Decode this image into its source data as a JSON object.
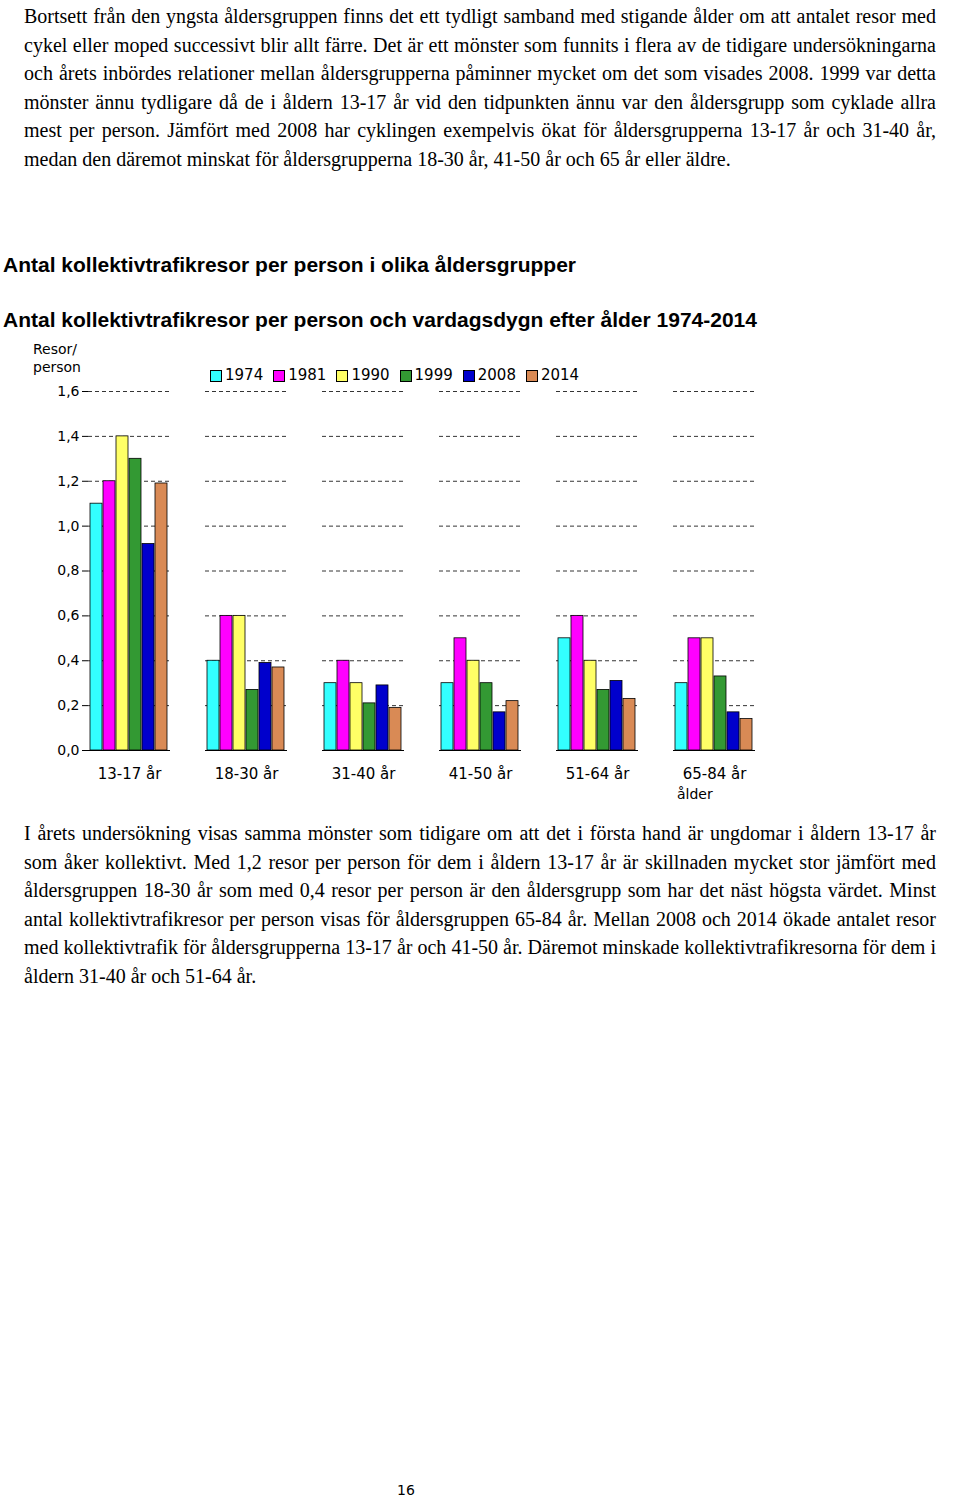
{
  "paragraph_top": "Bortsett från den yngsta åldersgruppen finns det ett tydligt samband med stigande ålder om att antalet resor med cykel eller moped successivt blir allt färre. Det är ett mönster som funnits i flera av de tidigare undersökningarna och årets inbördes relationer mellan åldersgrupperna påminner mycket om det som visades 2008. 1999 var detta mönster ännu tydligare då de i åldern 13-17 år vid den tidpunkten ännu var den åldersgrupp som cyklade allra mest per person. Jämfört med 2008 har cyklingen exempelvis ökat för åldersgrupperna 13-17 år och 31-40 år, medan den däremot minskat för åldersgrupperna 18-30 år, 41-50 år och 65 år eller äldre.",
  "heading": "Antal kollektivtrafikresor per person i olika åldersgrupper",
  "chart_data": {
    "type": "bar",
    "title": "Antal kollektivtrafikresor per person och vardagsdygn efter ålder 1974-2014",
    "ylabel": "Resor/ person",
    "xlabel": "ålder",
    "categories": [
      "13-17 år",
      "18-30 år",
      "31-40 år",
      "41-50 år",
      "51-64 år",
      "65-84 år"
    ],
    "series": [
      {
        "name": "1974",
        "color": "#33ffff",
        "values": [
          1.1,
          0.4,
          0.3,
          0.3,
          0.5,
          0.3
        ]
      },
      {
        "name": "1981",
        "color": "#ff00ff",
        "values": [
          1.2,
          0.6,
          0.4,
          0.5,
          0.6,
          0.5
        ]
      },
      {
        "name": "1990",
        "color": "#ffff66",
        "values": [
          1.4,
          0.6,
          0.3,
          0.4,
          0.4,
          0.5
        ]
      },
      {
        "name": "1999",
        "color": "#339933",
        "values": [
          1.3,
          0.27,
          0.21,
          0.3,
          0.27,
          0.33
        ]
      },
      {
        "name": "2008",
        "color": "#0000cc",
        "values": [
          0.92,
          0.39,
          0.29,
          0.17,
          0.31,
          0.17
        ]
      },
      {
        "name": "2014",
        "color": "#d98a55",
        "values": [
          1.19,
          0.37,
          0.19,
          0.22,
          0.23,
          0.14
        ]
      }
    ],
    "ylim": [
      0,
      1.6
    ],
    "yticks": [
      {
        "value": 0,
        "label": "0,0"
      },
      {
        "value": 0.2,
        "label": "0,2"
      },
      {
        "value": 0.4,
        "label": "0,4"
      },
      {
        "value": 0.6,
        "label": "0,6"
      },
      {
        "value": 0.8,
        "label": "0,8"
      },
      {
        "value": 1.0,
        "label": "1,0"
      },
      {
        "value": 1.2,
        "label": "1,2"
      },
      {
        "value": 1.4,
        "label": "1,4"
      },
      {
        "value": 1.6,
        "label": "1,6"
      }
    ],
    "grid": true,
    "legend": "top"
  },
  "paragraph_bottom": "I årets undersökning visas samma mönster som tidigare om att det i första hand är ungdomar i åldern 13-17 år som åker kollektivt. Med 1,2 resor per person för dem i åldern 13-17 år är skillnaden mycket stor jämfört med åldersgruppen 18-30 år som med 0,4 resor per person är den åldersgrupp som har det näst högsta värdet. Minst antal kollektivtrafikresor per person visas för åldersgruppen 65-84 år. Mellan 2008 och 2014 ökade antalet resor med kollektivtrafik för åldersgrupperna 13-17 år och 41-50 år. Däremot minskade kollektivtrafikresorna för dem i åldern 31-40 år och 51-64 år.",
  "page_number": 16
}
